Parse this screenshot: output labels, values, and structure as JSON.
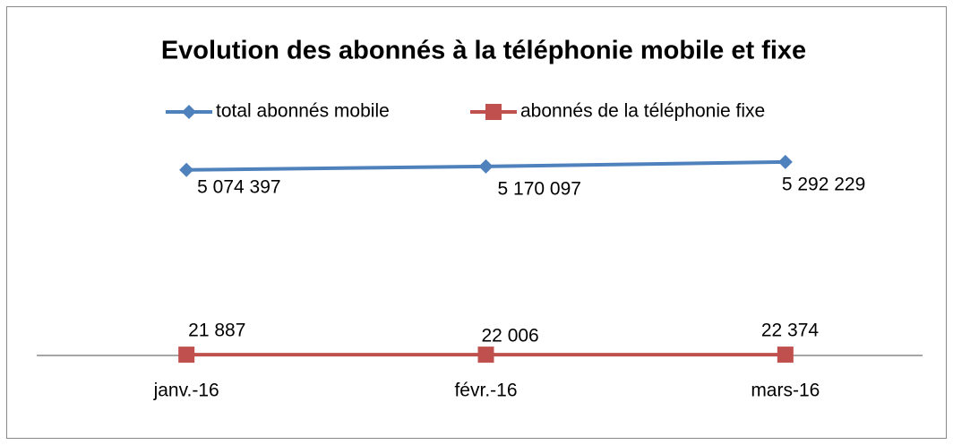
{
  "chart_data": {
    "type": "line",
    "title": "Evolution des abonnés à la téléphonie mobile et fixe",
    "categories": [
      "janv.-16",
      "févr.-16",
      "mars-16"
    ],
    "series": [
      {
        "name": "total abonnés mobile",
        "color": "#4f81bd",
        "marker": "diamond",
        "values": [
          5074397,
          5170097,
          5292229
        ],
        "value_labels": [
          "5 074 397",
          "5 170 097",
          "5 292 229"
        ]
      },
      {
        "name": "abonnés de la téléphonie fixe",
        "color": "#c0504d",
        "marker": "square",
        "values": [
          21887,
          22006,
          22374
        ],
        "value_labels": [
          "21 887",
          "22 006",
          "22 374"
        ]
      }
    ],
    "ylim": [
      0,
      6000000
    ],
    "legend": "top"
  }
}
